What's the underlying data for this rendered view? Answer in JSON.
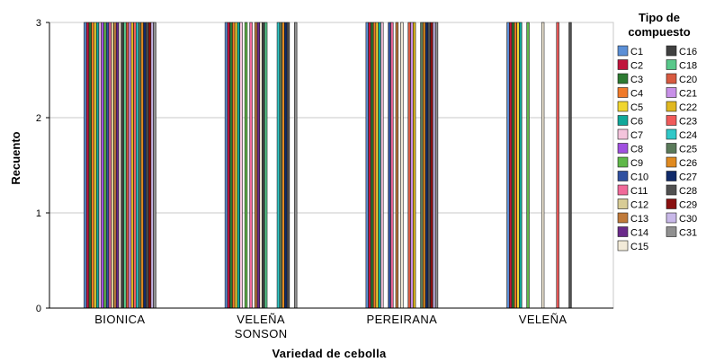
{
  "chart_data": {
    "type": "bar",
    "title": "",
    "xlabel": "Variedad de cebolla",
    "ylabel": "Recuento",
    "ylim": [
      0,
      3
    ],
    "yticks": [
      "0",
      "1",
      "2",
      "3"
    ],
    "grid": true,
    "legend_position": "right",
    "legend_title": [
      "Tipo de",
      "compuesto"
    ],
    "categories": [
      [
        "BIONICA"
      ],
      [
        "VELEÑA",
        "SONSON"
      ],
      [
        "PEREIRANA"
      ],
      [
        "VELEÑA"
      ]
    ],
    "series": [
      {
        "name": "C1",
        "color": "#5b8fd6",
        "values": [
          3,
          3,
          3,
          3
        ]
      },
      {
        "name": "C2",
        "color": "#c0143c",
        "values": [
          3,
          3,
          3,
          3
        ]
      },
      {
        "name": "C3",
        "color": "#2d7a32",
        "values": [
          3,
          3,
          3,
          3
        ]
      },
      {
        "name": "C4",
        "color": "#f07a2a",
        "values": [
          3,
          3,
          3,
          3
        ]
      },
      {
        "name": "C5",
        "color": "#f0d630",
        "values": [
          3,
          3,
          3,
          3
        ]
      },
      {
        "name": "C6",
        "color": "#10a89a",
        "values": [
          3,
          3,
          3,
          3
        ]
      },
      {
        "name": "C7",
        "color": "#f4c4dc",
        "values": [
          3,
          3,
          3,
          0
        ]
      },
      {
        "name": "C8",
        "color": "#a050e0",
        "values": [
          3,
          0,
          0,
          0
        ]
      },
      {
        "name": "C9",
        "color": "#60b84a",
        "values": [
          3,
          3,
          0,
          3
        ]
      },
      {
        "name": "C10",
        "color": "#3050a0",
        "values": [
          3,
          0,
          3,
          0
        ]
      },
      {
        "name": "C11",
        "color": "#f06a9a",
        "values": [
          3,
          3,
          3,
          0
        ]
      },
      {
        "name": "C12",
        "color": "#d8cc96",
        "values": [
          3,
          0,
          0,
          0
        ]
      },
      {
        "name": "C13",
        "color": "#c07a3a",
        "values": [
          3,
          3,
          3,
          0
        ]
      },
      {
        "name": "C14",
        "color": "#6a2a8a",
        "values": [
          3,
          3,
          0,
          0
        ]
      },
      {
        "name": "C15",
        "color": "#f2ead8",
        "values": [
          3,
          3,
          3,
          3
        ]
      },
      {
        "name": "C16",
        "color": "#404040",
        "values": [
          3,
          3,
          0,
          0
        ]
      },
      {
        "name": "C18",
        "color": "#58c88a",
        "values": [
          3,
          3,
          0,
          0
        ]
      },
      {
        "name": "C20",
        "color": "#d85a40",
        "values": [
          3,
          0,
          3,
          0
        ]
      },
      {
        "name": "C21",
        "color": "#c890e8",
        "values": [
          3,
          0,
          3,
          0
        ]
      },
      {
        "name": "C22",
        "color": "#e0b820",
        "values": [
          3,
          0,
          3,
          0
        ]
      },
      {
        "name": "C23",
        "color": "#f05a5a",
        "values": [
          3,
          0,
          0,
          3
        ]
      },
      {
        "name": "C24",
        "color": "#30c8c8",
        "values": [
          3,
          3,
          0,
          0
        ]
      },
      {
        "name": "C25",
        "color": "#5a7a5a",
        "values": [
          3,
          3,
          3,
          0
        ]
      },
      {
        "name": "C26",
        "color": "#e08a20",
        "values": [
          3,
          3,
          3,
          0
        ]
      },
      {
        "name": "C27",
        "color": "#102a6a",
        "values": [
          3,
          3,
          3,
          0
        ]
      },
      {
        "name": "C28",
        "color": "#505050",
        "values": [
          3,
          3,
          3,
          3
        ]
      },
      {
        "name": "C29",
        "color": "#8a1010",
        "values": [
          3,
          0,
          3,
          0
        ]
      },
      {
        "name": "C30",
        "color": "#c8b8e8",
        "values": [
          3,
          0,
          3,
          0
        ]
      },
      {
        "name": "C31",
        "color": "#909090",
        "values": [
          3,
          3,
          3,
          0
        ]
      }
    ]
  }
}
